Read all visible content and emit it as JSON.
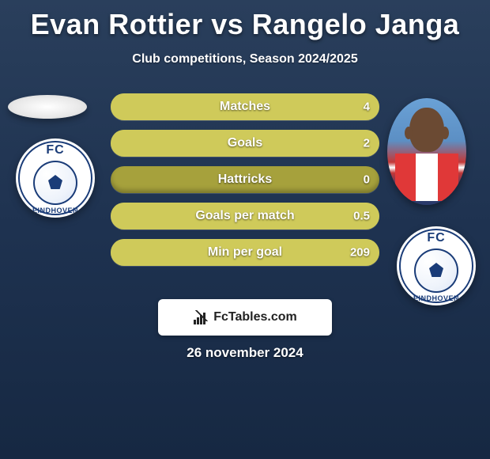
{
  "title": "Evan Rottier vs Rangelo Janga",
  "subtitle": "Club competitions, Season 2024/2025",
  "date": "26 november 2024",
  "badge_text": "FcTables.com",
  "club": {
    "top": "FC",
    "bottom": "EINDHOVEN"
  },
  "colors": {
    "bar_bg": "#a6a13c",
    "bar_fill": "#cfca5a",
    "text": "#ffffff"
  },
  "rows": [
    {
      "label": "Matches",
      "left": "",
      "right": "4",
      "fill_pct": 100
    },
    {
      "label": "Goals",
      "left": "",
      "right": "2",
      "fill_pct": 100
    },
    {
      "label": "Hattricks",
      "left": "",
      "right": "0",
      "fill_pct": 0
    },
    {
      "label": "Goals per match",
      "left": "",
      "right": "0.5",
      "fill_pct": 100
    },
    {
      "label": "Min per goal",
      "left": "",
      "right": "209",
      "fill_pct": 100
    }
  ]
}
